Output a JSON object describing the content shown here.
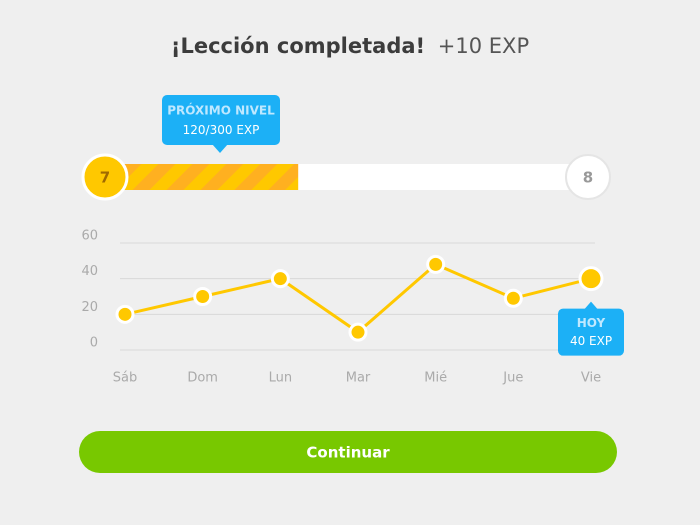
{
  "header": {
    "title": "¡Lección completada!",
    "bonus": "+10 EXP"
  },
  "level_progress": {
    "label": "PRÓXIMO NIVEL",
    "current": 120,
    "separator": "/",
    "max": 300,
    "unit": "EXP",
    "current_level": "7",
    "next_level": "8"
  },
  "chart_data": {
    "type": "line",
    "categories": [
      "Sáb",
      "Dom",
      "Lun",
      "Mar",
      "Mié",
      "Jue",
      "Vie"
    ],
    "values": [
      20,
      30,
      40,
      10,
      48,
      29,
      40
    ],
    "color": "#ffc800",
    "ylim": [
      0,
      60
    ],
    "yticks": [
      0,
      20,
      40,
      60
    ],
    "grid": true,
    "annotation": {
      "title": "HOY",
      "label": "40 EXP"
    }
  },
  "button": {
    "label": "Continuar"
  }
}
